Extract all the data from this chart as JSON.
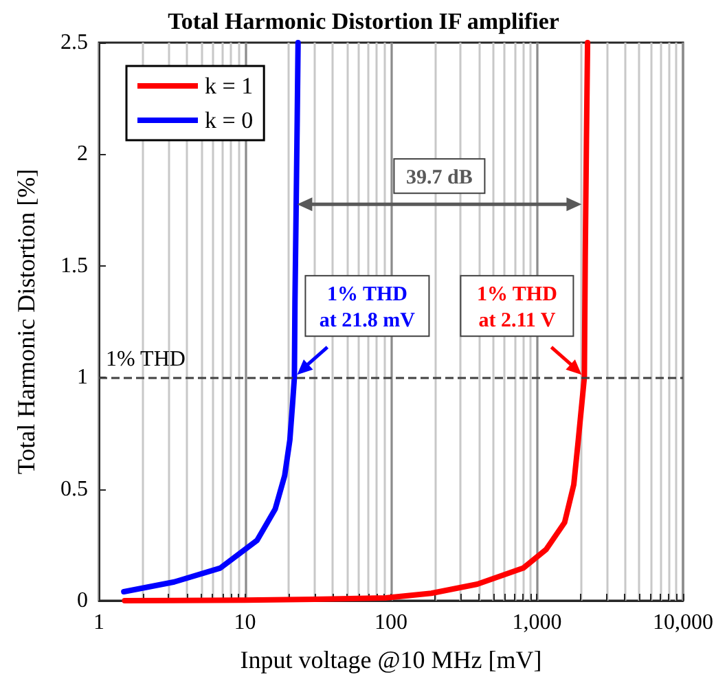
{
  "chart_data": {
    "type": "line",
    "title": "Total Harmonic Distortion IF amplifier",
    "xlabel": "Input voltage @10 MHz [mV]",
    "ylabel": "Total Harmonic Distortion [%]",
    "log": "x",
    "xlim": [
      1,
      10000
    ],
    "xticks": [
      1,
      10,
      100,
      {
        "value": 1000,
        "label": "1,000"
      },
      {
        "value": 10000,
        "label": "10,000"
      }
    ],
    "ylim": [
      0,
      2.5
    ],
    "yticks": [
      0,
      0.5,
      1,
      1.5,
      2,
      2.5
    ],
    "grid": "x",
    "legend": "top left",
    "marker": "none",
    "line_style": "solid",
    "series": [
      {
        "name": "k = 1",
        "color": "#ff0000",
        "x": [
          1.5,
          10,
          30,
          91.7,
          189,
          390,
          805,
          1157,
          1545,
          1786,
          1918,
          2110,
          2140,
          2180,
          2220
        ],
        "values": [
          0.0,
          0.002,
          0.006,
          0.012,
          0.033,
          0.074,
          0.146,
          0.23,
          0.35,
          0.52,
          0.72,
          1.0,
          1.54,
          2.06,
          2.5
        ]
      },
      {
        "name": "k = 0",
        "color": "#0000ff",
        "x": [
          1.48,
          3.28,
          6.77,
          12.1,
          16.1,
          18.7,
          20.3,
          21.2,
          21.8,
          22.0,
          22.4,
          22.8,
          23.1
        ],
        "values": [
          0.04,
          0.084,
          0.146,
          0.27,
          0.41,
          0.56,
          0.72,
          0.885,
          1.0,
          1.34,
          1.75,
          2.16,
          2.5
        ]
      }
    ],
    "ref_lines": [
      {
        "axis": "y",
        "value": 1,
        "label": "1% THD",
        "color": "#404040",
        "line_style": "dashed"
      }
    ],
    "annotations": [
      "39.7 dB",
      {
        "text": "1% THD\nat 21.8 mV",
        "x": 21.8,
        "y": 1
      },
      {
        "text": "1% THD\nat 2.11 V",
        "x": 2110,
        "y": 1
      }
    ]
  }
}
